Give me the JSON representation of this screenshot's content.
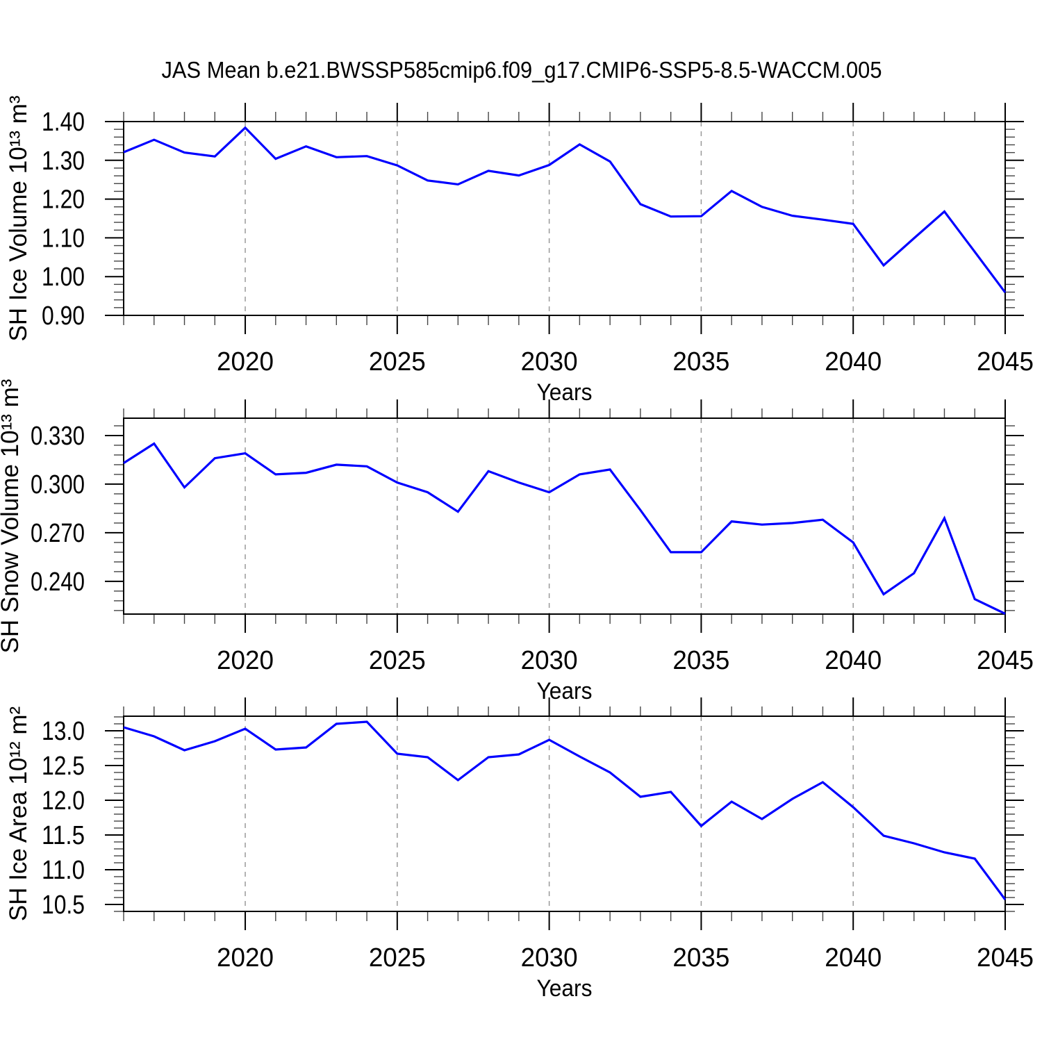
{
  "title": "JAS Mean b.e21.BWSSP585cmip6.f09_g17.CMIP6-SSP5-8.5-WACCM.005",
  "line_color": "#0000ff",
  "axis": {
    "xlabel": "Years",
    "xlim": [
      2016,
      2045
    ],
    "years": [
      2016,
      2017,
      2018,
      2019,
      2020,
      2021,
      2022,
      2023,
      2024,
      2025,
      2026,
      2027,
      2028,
      2029,
      2030,
      2031,
      2032,
      2033,
      2034,
      2035,
      2036,
      2037,
      2038,
      2039,
      2040,
      2041,
      2042,
      2043,
      2044,
      2045
    ],
    "x_major": [
      2020,
      2025,
      2030,
      2035,
      2040,
      2045
    ],
    "x_major_labels": [
      "2020",
      "2025",
      "2030",
      "2035",
      "2040",
      "2045"
    ],
    "x_gridlines": [
      2020,
      2025,
      2030,
      2035,
      2040
    ]
  },
  "chart_data": [
    {
      "type": "line",
      "id": "sh-ice-volume",
      "ylabel": "SH Ice Volume 10¹³ m³",
      "ylim": [
        0.9,
        1.4
      ],
      "y_ticks": [
        0.9,
        1.0,
        1.1,
        1.2,
        1.3,
        1.4
      ],
      "y_tick_labels": [
        "0.90",
        "1.00",
        "1.10",
        "1.20",
        "1.30",
        "1.40"
      ],
      "y_minor_step": 0.02,
      "values": [
        1.321,
        1.353,
        1.32,
        1.31,
        1.384,
        1.304,
        1.336,
        1.308,
        1.311,
        1.287,
        1.248,
        1.238,
        1.273,
        1.261,
        1.288,
        1.341,
        1.297,
        1.187,
        1.155,
        1.156,
        1.221,
        1.18,
        1.157,
        1.147,
        1.136,
        1.029,
        1.099,
        1.168,
        1.064,
        0.959
      ]
    },
    {
      "type": "line",
      "id": "sh-snow-volume",
      "ylabel": "SH Snow Volume 10¹³ m³",
      "ylim": [
        0.2198,
        0.3407
      ],
      "y_ticks": [
        0.24,
        0.27,
        0.3,
        0.33
      ],
      "y_tick_labels": [
        "0.240",
        "0.270",
        "0.300",
        "0.330"
      ],
      "y_minor_step": 0.006,
      "values": [
        0.313,
        0.325,
        0.298,
        0.316,
        0.319,
        0.306,
        0.307,
        0.312,
        0.311,
        0.301,
        0.295,
        0.283,
        0.308,
        0.301,
        0.295,
        0.306,
        0.309,
        0.284,
        0.258,
        0.258,
        0.277,
        0.275,
        0.276,
        0.278,
        0.264,
        0.232,
        0.245,
        0.279,
        0.229,
        0.22
      ]
    },
    {
      "type": "line",
      "id": "sh-ice-area",
      "ylabel": "SH Ice Area 10¹² m²",
      "ylim": [
        10.4,
        13.21
      ],
      "y_ticks": [
        10.5,
        11.0,
        11.5,
        12.0,
        12.5,
        13.0
      ],
      "y_tick_labels": [
        "10.5",
        "11.0",
        "11.5",
        "12.0",
        "12.5",
        "13.0"
      ],
      "y_minor_step": 0.1,
      "values": [
        13.05,
        12.92,
        12.72,
        12.85,
        13.03,
        12.73,
        12.76,
        13.1,
        13.13,
        12.67,
        12.62,
        12.29,
        12.62,
        12.66,
        12.87,
        12.63,
        12.4,
        12.05,
        12.12,
        11.63,
        11.98,
        11.73,
        12.02,
        12.26,
        11.9,
        11.49,
        11.38,
        11.25,
        11.16,
        10.57
      ]
    }
  ]
}
